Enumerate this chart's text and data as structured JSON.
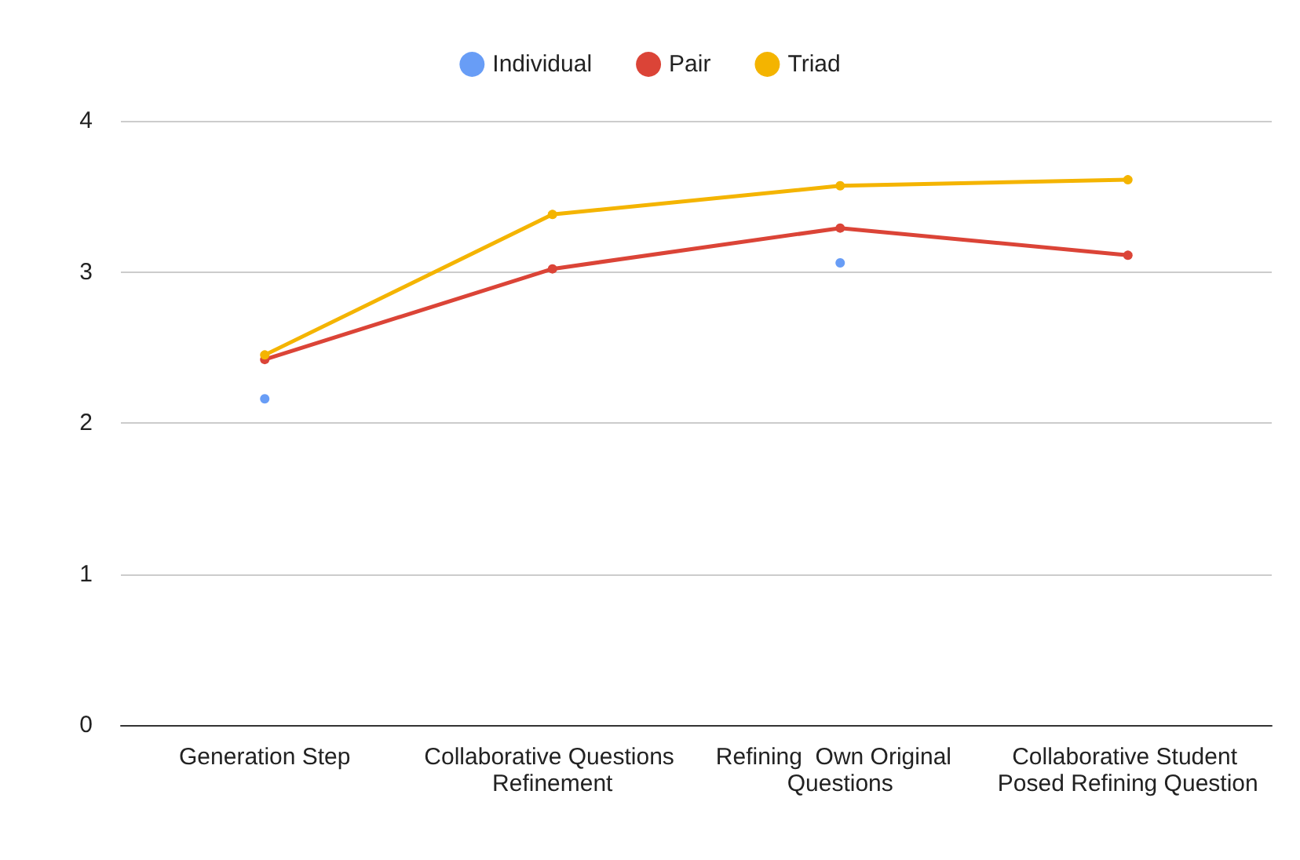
{
  "chart_data": {
    "type": "line",
    "categories": [
      "Generation Step",
      "Collaborative Questions Refinement",
      "Refining  Own Original  Questions",
      "Collaborative Student Posed Refining Question"
    ],
    "series": [
      {
        "name": "Individual",
        "type": "scatter",
        "color": "#4285f4",
        "values": [
          2.16,
          null,
          3.06,
          null
        ]
      },
      {
        "name": "Pair",
        "color": "#db4437",
        "values": [
          2.42,
          3.02,
          3.29,
          3.11
        ]
      },
      {
        "name": "Triad",
        "color": "#f4b400",
        "values": [
          2.45,
          3.38,
          3.57,
          3.61
        ]
      }
    ],
    "ylim": [
      0,
      4
    ],
    "yticks": [
      0,
      1,
      2,
      3,
      4
    ],
    "grid": "y",
    "legend": "top",
    "marker": "circle",
    "line_style": "solid"
  }
}
